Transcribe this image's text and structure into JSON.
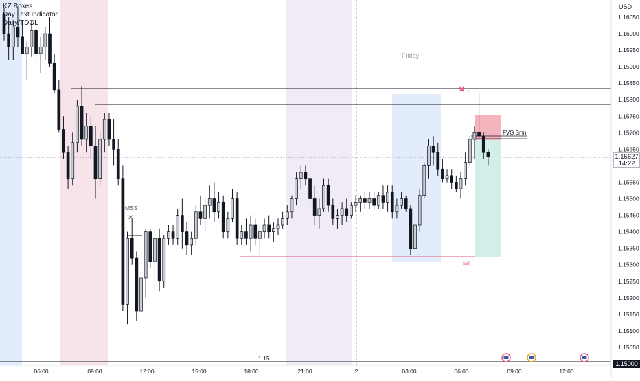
{
  "indicators": [
    "KZ Boxes",
    "Day Text Indicator",
    "Daily/TDOL"
  ],
  "price_axis": {
    "unit": "USD",
    "labels": [
      "1.16050",
      "1.16000",
      "1.15950",
      "1.15900",
      "1.15850",
      "1.15800",
      "1.15750",
      "1.15700",
      "1.15650",
      "1.15600",
      "1.15550",
      "1.15500",
      "1.15450",
      "1.15400",
      "1.15350",
      "1.15300",
      "1.15250",
      "1.15200",
      "1.15150",
      "1.15100",
      "1.15050",
      "1.15000"
    ],
    "current_price": "1.15627",
    "countdown": "14:22",
    "bottom_price": "1.15000"
  },
  "time_axis": {
    "labels": [
      "06:00",
      "09:00",
      "12:00",
      "15:00",
      "18:00",
      "21:00",
      "2",
      "03:00",
      "06:00",
      "09:00",
      "12:00"
    ]
  },
  "annotations": {
    "day_label": "Friday",
    "mss": "MSS",
    "fvg": "FVG 5mn",
    "ssl": "ssl",
    "d_marker": "d",
    "level_label": "1.15"
  },
  "colors": {
    "up_candle": "#c8cbd1",
    "down_candle": "#131722",
    "pink_zone": "#f6e4ea",
    "blue_zone": "#e3ecfb",
    "purple_zone": "#f1ebf6",
    "accent_red": "#e05a7a",
    "fvg_red": "#f4b4bd",
    "fvg_green": "#d3ede8"
  },
  "chart_data": {
    "type": "candlestick",
    "instrument_hint": "EURUSD 15m",
    "candles": [
      [
        1.1606,
        1.1608,
        1.1598,
        1.16
      ],
      [
        1.16,
        1.1605,
        1.1592,
        1.1596
      ],
      [
        1.1596,
        1.1604,
        1.1592,
        1.1602
      ],
      [
        1.1602,
        1.1608,
        1.1596,
        1.1599
      ],
      [
        1.1599,
        1.1604,
        1.1594,
        1.1594
      ],
      [
        1.1594,
        1.1598,
        1.1586,
        1.1596
      ],
      [
        1.1596,
        1.1604,
        1.1593,
        1.1601
      ],
      [
        1.1601,
        1.1604,
        1.1592,
        1.1594
      ],
      [
        1.1594,
        1.1599,
        1.1588,
        1.1596
      ],
      [
        1.1596,
        1.1602,
        1.1592,
        1.16
      ],
      [
        1.16,
        1.1605,
        1.159,
        1.1591
      ],
      [
        1.1591,
        1.1594,
        1.1582,
        1.1583
      ],
      [
        1.1583,
        1.1586,
        1.157,
        1.1571
      ],
      [
        1.1571,
        1.1575,
        1.1562,
        1.1564
      ],
      [
        1.1564,
        1.1566,
        1.1553,
        1.1556
      ],
      [
        1.1556,
        1.157,
        1.1554,
        1.1567
      ],
      [
        1.1567,
        1.158,
        1.1564,
        1.1578
      ],
      [
        1.1578,
        1.1584,
        1.1566,
        1.1568
      ],
      [
        1.1568,
        1.1576,
        1.1564,
        1.1572
      ],
      [
        1.1572,
        1.1575,
        1.1562,
        1.1566
      ],
      [
        1.1566,
        1.1572,
        1.155,
        1.1556
      ],
      [
        1.1556,
        1.157,
        1.1554,
        1.1568
      ],
      [
        1.1568,
        1.1576,
        1.1564,
        1.1574
      ],
      [
        1.1574,
        1.1576,
        1.1566,
        1.1568
      ],
      [
        1.1568,
        1.1574,
        1.156,
        1.1565
      ],
      [
        1.1565,
        1.1568,
        1.1554,
        1.1556
      ],
      [
        1.1556,
        1.156,
        1.1516,
        1.1518
      ],
      [
        1.1518,
        1.154,
        1.1512,
        1.1538
      ],
      [
        1.1538,
        1.1544,
        1.153,
        1.1532
      ],
      [
        1.1532,
        1.1534,
        1.1513,
        1.1516
      ],
      [
        1.1516,
        1.1532,
        1.1498,
        1.1526
      ],
      [
        1.1526,
        1.1541,
        1.152,
        1.154
      ],
      [
        1.154,
        1.1541,
        1.1529,
        1.1531
      ],
      [
        1.1531,
        1.154,
        1.1523,
        1.1538
      ],
      [
        1.1538,
        1.1541,
        1.1522,
        1.1525
      ],
      [
        1.1525,
        1.1539,
        1.1523,
        1.1538
      ],
      [
        1.1538,
        1.1542,
        1.1536,
        1.154
      ],
      [
        1.154,
        1.1542,
        1.1536,
        1.1538
      ],
      [
        1.1538,
        1.1547,
        1.1536,
        1.1545
      ],
      [
        1.1545,
        1.155,
        1.1535,
        1.154
      ],
      [
        1.154,
        1.1543,
        1.1533,
        1.1536
      ],
      [
        1.1536,
        1.154,
        1.1533,
        1.1538
      ],
      [
        1.1538,
        1.1548,
        1.1536,
        1.1546
      ],
      [
        1.1546,
        1.1551,
        1.1542,
        1.1544
      ],
      [
        1.1544,
        1.155,
        1.154,
        1.1548
      ],
      [
        1.1548,
        1.1554,
        1.1544,
        1.155
      ],
      [
        1.155,
        1.1555,
        1.1543,
        1.1546
      ],
      [
        1.1546,
        1.1552,
        1.1544,
        1.1549
      ],
      [
        1.1549,
        1.1551,
        1.1538,
        1.154
      ],
      [
        1.154,
        1.1546,
        1.1538,
        1.1544
      ],
      [
        1.1544,
        1.1553,
        1.1543,
        1.155
      ],
      [
        1.155,
        1.1552,
        1.1536,
        1.1538
      ],
      [
        1.1538,
        1.1542,
        1.1536,
        1.154
      ],
      [
        1.154,
        1.1544,
        1.1536,
        1.1538
      ],
      [
        1.1538,
        1.1545,
        1.1534,
        1.1542
      ],
      [
        1.1542,
        1.1544,
        1.1536,
        1.1538
      ],
      [
        1.1538,
        1.1542,
        1.1533,
        1.154
      ],
      [
        1.154,
        1.1544,
        1.1538,
        1.1542
      ],
      [
        1.1542,
        1.1545,
        1.1538,
        1.154
      ],
      [
        1.154,
        1.1543,
        1.1537,
        1.1541
      ],
      [
        1.1541,
        1.1544,
        1.1539,
        1.1542
      ],
      [
        1.1542,
        1.1546,
        1.1541,
        1.1544
      ],
      [
        1.1544,
        1.1548,
        1.1542,
        1.1546
      ],
      [
        1.1546,
        1.1551,
        1.1544,
        1.155
      ],
      [
        1.155,
        1.1558,
        1.1548,
        1.1556
      ],
      [
        1.1556,
        1.156,
        1.1553,
        1.1558
      ],
      [
        1.1558,
        1.156,
        1.1554,
        1.1556
      ],
      [
        1.1556,
        1.1558,
        1.1548,
        1.155
      ],
      [
        1.155,
        1.1554,
        1.1542,
        1.1545
      ],
      [
        1.1545,
        1.155,
        1.1541,
        1.1547
      ],
      [
        1.1547,
        1.1556,
        1.1546,
        1.1554
      ],
      [
        1.1554,
        1.1556,
        1.1546,
        1.1548
      ],
      [
        1.1548,
        1.155,
        1.1542,
        1.1544
      ],
      [
        1.1544,
        1.1547,
        1.1541,
        1.1545
      ],
      [
        1.1545,
        1.1549,
        1.1542,
        1.1547
      ],
      [
        1.1547,
        1.155,
        1.1543,
        1.1545
      ],
      [
        1.1545,
        1.1549,
        1.1544,
        1.1548
      ],
      [
        1.1548,
        1.1551,
        1.1546,
        1.1549
      ],
      [
        1.1549,
        1.1551,
        1.1546,
        1.155
      ],
      [
        1.155,
        1.1552,
        1.1547,
        1.1549
      ],
      [
        1.1549,
        1.1552,
        1.1547,
        1.155
      ],
      [
        1.155,
        1.1552,
        1.1547,
        1.1548
      ],
      [
        1.1548,
        1.1552,
        1.1547,
        1.1551
      ],
      [
        1.1551,
        1.1554,
        1.1547,
        1.1549
      ],
      [
        1.1549,
        1.1554,
        1.1546,
        1.1552
      ],
      [
        1.1552,
        1.1554,
        1.1544,
        1.1546
      ],
      [
        1.1546,
        1.155,
        1.1544,
        1.1548
      ],
      [
        1.1548,
        1.1552,
        1.1547,
        1.155
      ],
      [
        1.155,
        1.1551,
        1.1546,
        1.1547
      ],
      [
        1.1547,
        1.1548,
        1.1533,
        1.1535
      ],
      [
        1.1535,
        1.1545,
        1.1532,
        1.1542
      ],
      [
        1.1542,
        1.1553,
        1.154,
        1.1551
      ],
      [
        1.1551,
        1.1561,
        1.155,
        1.156
      ],
      [
        1.156,
        1.1568,
        1.1556,
        1.1566
      ],
      [
        1.1566,
        1.1569,
        1.156,
        1.1564
      ],
      [
        1.1564,
        1.1567,
        1.1557,
        1.1559
      ],
      [
        1.1559,
        1.1562,
        1.1555,
        1.1556
      ],
      [
        1.1556,
        1.1559,
        1.1555,
        1.1557
      ],
      [
        1.1557,
        1.1559,
        1.1553,
        1.1555
      ],
      [
        1.1555,
        1.1557,
        1.1552,
        1.1553
      ],
      [
        1.1553,
        1.1558,
        1.155,
        1.1556
      ],
      [
        1.1556,
        1.1564,
        1.1554,
        1.1561
      ],
      [
        1.1561,
        1.1569,
        1.156,
        1.1568
      ],
      [
        1.1568,
        1.1572,
        1.1562,
        1.157
      ],
      [
        1.157,
        1.1582,
        1.1568,
        1.1569
      ],
      [
        1.1569,
        1.157,
        1.1562,
        1.1564
      ],
      [
        1.1564,
        1.1565,
        1.156,
        1.15627
      ]
    ]
  }
}
